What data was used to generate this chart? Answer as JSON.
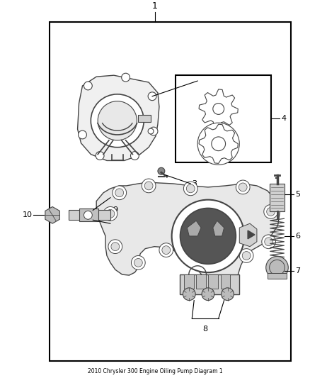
{
  "title": "2010 Chrysler 300 Engine Oiling Pump Diagram 1",
  "bg_color": "#ffffff",
  "border_color": "#000000",
  "line_color": "#444444",
  "border": [
    0.155,
    0.045,
    0.945,
    0.955
  ],
  "fig_w": 4.38,
  "fig_h": 5.33
}
